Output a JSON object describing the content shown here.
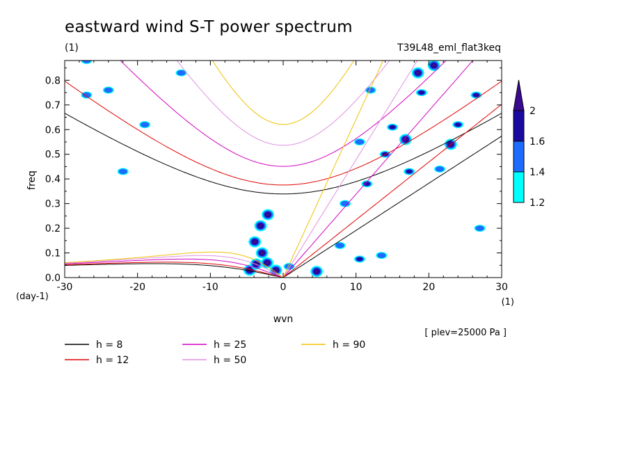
{
  "chart_data": {
    "type": "heatmap",
    "title": "eastward wind S-T power spectrum",
    "title_units": "(1)",
    "experiment": "T39L48_eml_flat3keq",
    "xlabel": "wvn",
    "x_units": "(1)",
    "ylabel": "freq",
    "y_units": "(day-1)",
    "xlim": [
      -30,
      30
    ],
    "ylim": [
      0.0,
      0.88
    ],
    "x_ticks": [
      -30,
      -20,
      -10,
      0,
      10,
      20,
      30
    ],
    "x_tick_labels": [
      "-30",
      "-20",
      "-10",
      "0",
      "10",
      "20",
      "30"
    ],
    "y_ticks": [
      0.0,
      0.1,
      0.2,
      0.3,
      0.4,
      0.5,
      0.6,
      0.7,
      0.8
    ],
    "y_tick_labels": [
      "0.0",
      "0.1",
      "0.2",
      "0.3",
      "0.4",
      "0.5",
      "0.6",
      "0.7",
      "0.8"
    ],
    "plev_note": "[ plev=25000 Pa ]",
    "colorbar": {
      "levels": [
        1.2,
        1.4,
        1.6,
        2.0
      ],
      "labels": [
        "1.2",
        "1.4",
        "1.6",
        "2"
      ],
      "colors": [
        "#00ffff",
        "#1e6cff",
        "#1a0aa0",
        "#3a0a90"
      ]
    },
    "dispersion_curves": [
      {
        "h": 8,
        "label": "h =  8",
        "color": "#000000"
      },
      {
        "h": 12,
        "label": "h = 12",
        "color": "#e00000"
      },
      {
        "h": 25,
        "label": "h = 25",
        "color": "#d000c0"
      },
      {
        "h": 50,
        "label": "h = 50",
        "color": "#e090e0"
      },
      {
        "h": 90,
        "label": "h = 90",
        "color": "#f0c000"
      }
    ],
    "power_blobs": [
      {
        "k": -4.6,
        "f": 0.03,
        "level": 3
      },
      {
        "k": -3.7,
        "f": 0.055,
        "level": 3
      },
      {
        "k": -2.2,
        "f": 0.06,
        "level": 3
      },
      {
        "k": -1.0,
        "f": 0.03,
        "level": 3
      },
      {
        "k": -3.9,
        "f": 0.145,
        "level": 3
      },
      {
        "k": -2.9,
        "f": 0.1,
        "level": 3
      },
      {
        "k": -3.1,
        "f": 0.21,
        "level": 3
      },
      {
        "k": -2.1,
        "f": 0.255,
        "level": 3
      },
      {
        "k": 4.6,
        "f": 0.025,
        "level": 3
      },
      {
        "k": 0.8,
        "f": 0.045,
        "level": 1
      },
      {
        "k": 10.5,
        "f": 0.075,
        "level": 2
      },
      {
        "k": 13.5,
        "f": 0.09,
        "level": 1
      },
      {
        "k": 11.5,
        "f": 0.38,
        "level": 2
      },
      {
        "k": 14.0,
        "f": 0.5,
        "level": 2
      },
      {
        "k": 16.8,
        "f": 0.56,
        "level": 3
      },
      {
        "k": 18.5,
        "f": 0.83,
        "level": 3
      },
      {
        "k": 20.7,
        "f": 0.86,
        "level": 3
      },
      {
        "k": 19.0,
        "f": 0.75,
        "level": 2
      },
      {
        "k": 15.0,
        "f": 0.61,
        "level": 2
      },
      {
        "k": 24.0,
        "f": 0.62,
        "level": 2
      },
      {
        "k": 23.0,
        "f": 0.54,
        "level": 3
      },
      {
        "k": 26.5,
        "f": 0.74,
        "level": 2
      },
      {
        "k": 17.3,
        "f": 0.43,
        "level": 2
      },
      {
        "k": 21.5,
        "f": 0.44,
        "level": 1
      },
      {
        "k": -27.0,
        "f": 0.74,
        "level": 1
      },
      {
        "k": -24.0,
        "f": 0.76,
        "level": 1
      },
      {
        "k": -19.0,
        "f": 0.62,
        "level": 1
      },
      {
        "k": -22.0,
        "f": 0.43,
        "level": 1
      },
      {
        "k": -27.0,
        "f": 0.88,
        "level": 1
      },
      {
        "k": -14.0,
        "f": 0.83,
        "level": 1
      },
      {
        "k": 12.0,
        "f": 0.76,
        "level": 1
      },
      {
        "k": 10.5,
        "f": 0.55,
        "level": 1
      },
      {
        "k": 8.5,
        "f": 0.3,
        "level": 1
      },
      {
        "k": 7.8,
        "f": 0.13,
        "level": 1
      },
      {
        "k": 27.0,
        "f": 0.2,
        "level": 1
      }
    ],
    "legend_position": "bottom-left"
  }
}
